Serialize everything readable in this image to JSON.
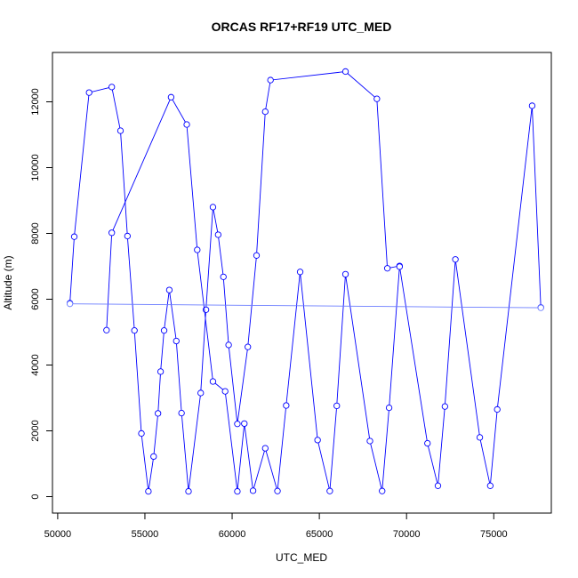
{
  "chart_data": {
    "type": "line",
    "title": "ORCAS RF17+RF19 UTC_MED",
    "xlabel": "UTC_MED",
    "ylabel": "Altitude (m)",
    "xlim": [
      49700,
      78300
    ],
    "ylim": [
      -500,
      13500
    ],
    "x_ticks": [
      50000,
      55000,
      60000,
      65000,
      70000,
      75000
    ],
    "y_ticks": [
      0,
      2000,
      4000,
      6000,
      8000,
      10000,
      12000
    ],
    "grid": false,
    "series": [
      {
        "color": "#0000ff",
        "points": [
          [
            50700,
            5880
          ],
          [
            50950,
            7900
          ],
          [
            51800,
            12280
          ],
          [
            53100,
            12450
          ],
          [
            53600,
            11120
          ],
          [
            54000,
            7920
          ],
          [
            54400,
            5050
          ],
          [
            54800,
            1920
          ],
          [
            55200,
            160
          ],
          [
            55500,
            1220
          ],
          [
            55750,
            2530
          ],
          [
            55900,
            3800
          ],
          [
            56100,
            5050
          ],
          [
            56400,
            6280
          ],
          [
            56800,
            4730
          ],
          [
            57100,
            2540
          ],
          [
            57500,
            160
          ],
          [
            58200,
            3150
          ],
          [
            58500,
            5680
          ],
          [
            58900,
            8800
          ],
          [
            59200,
            7960
          ],
          [
            59500,
            6680
          ],
          [
            59800,
            4610
          ],
          [
            60300,
            2210
          ],
          [
            60900,
            4550
          ],
          [
            61400,
            7330
          ],
          [
            61900,
            11700
          ],
          [
            62200,
            12660
          ],
          [
            66500,
            12920
          ],
          [
            68300,
            12090
          ],
          [
            68900,
            6940
          ],
          [
            69600,
            7010
          ],
          [
            71200,
            1620
          ],
          [
            71800,
            330
          ],
          [
            72200,
            2740
          ],
          [
            72800,
            7210
          ],
          [
            74200,
            1800
          ],
          [
            74800,
            330
          ],
          [
            75200,
            2650
          ],
          [
            77200,
            11880
          ],
          [
            77700,
            5750
          ]
        ]
      },
      {
        "color": "#0000ff",
        "points": [
          [
            52800,
            5060
          ],
          [
            53100,
            8020
          ],
          [
            56500,
            12140
          ],
          [
            57400,
            11310
          ],
          [
            58000,
            7500
          ],
          [
            58900,
            3500
          ],
          [
            59600,
            3200
          ],
          [
            60300,
            160
          ],
          [
            60700,
            2220
          ],
          [
            61200,
            180
          ],
          [
            61900,
            1470
          ],
          [
            62600,
            170
          ],
          [
            63100,
            2770
          ],
          [
            63900,
            6830
          ],
          [
            64900,
            1720
          ],
          [
            65600,
            170
          ],
          [
            66000,
            2760
          ],
          [
            66500,
            6760
          ],
          [
            67900,
            1690
          ],
          [
            68600,
            170
          ],
          [
            69000,
            2700
          ],
          [
            69600,
            6990
          ]
        ]
      },
      {
        "color": "#6a7cff",
        "points": [
          [
            50700,
            5860
          ],
          [
            77700,
            5740
          ]
        ]
      }
    ]
  }
}
